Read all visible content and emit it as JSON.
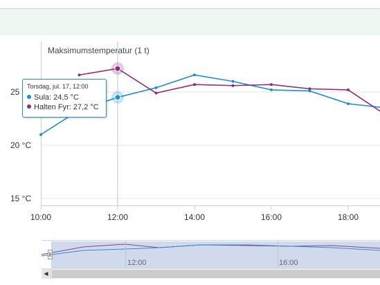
{
  "chart_data": {
    "type": "line",
    "title": "",
    "series_label": "Maksimumstemperatur (1 t)",
    "x": [
      "10:00",
      "11:00",
      "12:00",
      "13:00",
      "14:00",
      "15:00",
      "16:00",
      "17:00",
      "18:00",
      "19:00"
    ],
    "x_tick_labels": [
      "10:00",
      "12:00",
      "14:00",
      "16:00",
      "18:00"
    ],
    "y_tick_labels": [
      "15 °C",
      "20 °C",
      "25"
    ],
    "ylim": [
      14,
      30
    ],
    "grid": true,
    "series": [
      {
        "name": "Sula",
        "color": "#1d8fd0",
        "values": [
          21.0,
          23.3,
          24.5,
          25.4,
          26.6,
          26.0,
          25.2,
          25.1,
          23.9,
          23.5
        ]
      },
      {
        "name": "Halten Fyr",
        "color": "#8b2c7c",
        "values": [
          null,
          26.6,
          27.2,
          24.9,
          25.7,
          25.6,
          25.7,
          25.3,
          25.2,
          22.8
        ]
      }
    ],
    "tooltip": {
      "header": "Torsdag, jul. 17, 12:00",
      "rows": [
        {
          "name": "Sula",
          "value": "24,5 °C",
          "color": "#1d8fd0"
        },
        {
          "name": "Halten Fyr",
          "value": "27,2 °C",
          "color": "#8b2c7c"
        }
      ]
    },
    "navigator": {
      "labels": [
        "12:00",
        "16:00"
      ]
    }
  }
}
